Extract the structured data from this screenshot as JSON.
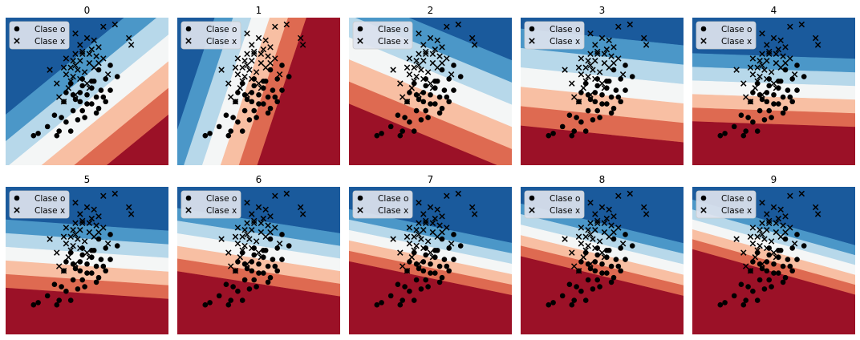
{
  "colors": {
    "field": [
      "#1a5a9c",
      "#4b97c8",
      "#b7d8ea",
      "#f4f6f6",
      "#f8bfa3",
      "#de6a51",
      "#9b1127"
    ],
    "marker": "#000000",
    "legend_bg": "#dde3ee"
  },
  "chart_data": {
    "type": "scatter",
    "description_grid": {
      "rows": 2,
      "cols": 5
    },
    "legend": {
      "placement": "top-left",
      "entries": [
        {
          "label": "Clase o",
          "marker": "circle"
        },
        {
          "label": "Clase x",
          "marker": "x"
        }
      ]
    },
    "xlim": [
      -3.5,
      3.5
    ],
    "ylim": [
      -3.0,
      3.5
    ],
    "grid": false,
    "panels": [
      {
        "title": "0",
        "boundary": {
          "angle_deg": 40,
          "offset": -0.6,
          "band": 0.9
        }
      },
      {
        "title": "1",
        "boundary": {
          "angle_deg": 72,
          "offset": 1.0,
          "band": 0.75
        }
      },
      {
        "title": "2",
        "boundary": {
          "angle_deg": -23,
          "offset": 0.6,
          "band": 0.9
        }
      },
      {
        "title": "3",
        "boundary": {
          "angle_deg": -6,
          "offset": 0.5,
          "band": 0.85
        }
      },
      {
        "title": "4",
        "boundary": {
          "angle_deg": -2,
          "offset": 0.3,
          "band": 0.6
        }
      },
      {
        "title": "5",
        "boundary": {
          "angle_deg": -4,
          "offset": 0.3,
          "band": 0.6
        }
      },
      {
        "title": "6",
        "boundary": {
          "angle_deg": -9,
          "offset": 0.6,
          "band": 0.55
        }
      },
      {
        "title": "7",
        "boundary": {
          "angle_deg": -12,
          "offset": 0.6,
          "band": 0.45
        }
      },
      {
        "title": "8",
        "boundary": {
          "angle_deg": -14,
          "offset": 0.7,
          "band": 0.45
        }
      },
      {
        "title": "9",
        "boundary": {
          "angle_deg": -16,
          "offset": 0.8,
          "band": 0.42
        }
      }
    ],
    "series": [
      {
        "name": "Clase o",
        "marker": "circle",
        "points": [
          [
            1.0,
            1.4
          ],
          [
            0.5,
            1.2
          ],
          [
            0.2,
            0.7
          ],
          [
            0.8,
            0.8
          ],
          [
            -0.2,
            0.5
          ],
          [
            0.6,
            0.3
          ],
          [
            1.0,
            0.3
          ],
          [
            0.0,
            0.1
          ],
          [
            -0.7,
            0.6
          ],
          [
            -0.3,
            0.2
          ],
          [
            0.4,
            0.0
          ],
          [
            0.2,
            0.4
          ],
          [
            -0.5,
            -0.1
          ],
          [
            0.8,
            -0.2
          ],
          [
            0.5,
            -0.5
          ],
          [
            -0.3,
            -0.2
          ],
          [
            -0.9,
            0.2
          ],
          [
            -1.0,
            -0.2
          ],
          [
            0.2,
            -0.3
          ],
          [
            -0.2,
            -0.6
          ],
          [
            -0.6,
            -0.6
          ],
          [
            0.4,
            -0.7
          ],
          [
            -0.1,
            -0.9
          ],
          [
            -1.4,
            -0.8
          ],
          [
            -0.4,
            -1.0
          ],
          [
            -0.9,
            -1.1
          ],
          [
            -1.7,
            -1.3
          ],
          [
            -0.7,
            -1.5
          ],
          [
            -1.2,
            -1.5
          ],
          [
            -2.1,
            -1.6
          ],
          [
            -2.3,
            -1.7
          ],
          [
            -1.3,
            -1.7
          ],
          [
            0.3,
            0.7
          ],
          [
            -0.2,
            0.8
          ],
          [
            1.3,
            0.9
          ],
          [
            0.7,
            0.0
          ],
          [
            0.0,
            -0.3
          ],
          [
            -0.6,
            0.1
          ],
          [
            -1.1,
            -0.9
          ]
        ]
      },
      {
        "name": "Clase x",
        "marker": "x",
        "points": [
          [
            0.7,
            3.1
          ],
          [
            1.2,
            3.2
          ],
          [
            -0.5,
            2.8
          ],
          [
            1.8,
            2.6
          ],
          [
            1.9,
            2.3
          ],
          [
            0.0,
            2.6
          ],
          [
            -0.3,
            2.3
          ],
          [
            0.2,
            2.1
          ],
          [
            0.5,
            2.2
          ],
          [
            -0.5,
            1.9
          ],
          [
            -0.2,
            1.9
          ],
          [
            0.1,
            1.9
          ],
          [
            0.4,
            1.8
          ],
          [
            0.7,
            1.7
          ],
          [
            -0.9,
            1.7
          ],
          [
            -0.6,
            1.6
          ],
          [
            -0.3,
            1.6
          ],
          [
            0.1,
            1.5
          ],
          [
            0.5,
            1.5
          ],
          [
            0.3,
            1.3
          ],
          [
            -1.0,
            1.3
          ],
          [
            -0.7,
            1.3
          ],
          [
            -0.4,
            1.2
          ],
          [
            -0.1,
            1.1
          ],
          [
            -0.9,
            1.0
          ],
          [
            -1.6,
            1.2
          ],
          [
            -0.6,
            0.9
          ],
          [
            -0.3,
            0.8
          ],
          [
            0.0,
            0.6
          ],
          [
            -0.8,
            0.4
          ],
          [
            0.1,
            0.4
          ],
          [
            -1.2,
            0.0
          ],
          [
            -1.0,
            -0.2
          ],
          [
            -0.5,
            0.1
          ],
          [
            -0.7,
            0.7
          ],
          [
            -0.2,
            2.0
          ],
          [
            0.9,
            1.0
          ],
          [
            -1.3,
            0.6
          ],
          [
            0.3,
            2.5
          ],
          [
            -0.5,
            1.4
          ]
        ]
      }
    ]
  }
}
